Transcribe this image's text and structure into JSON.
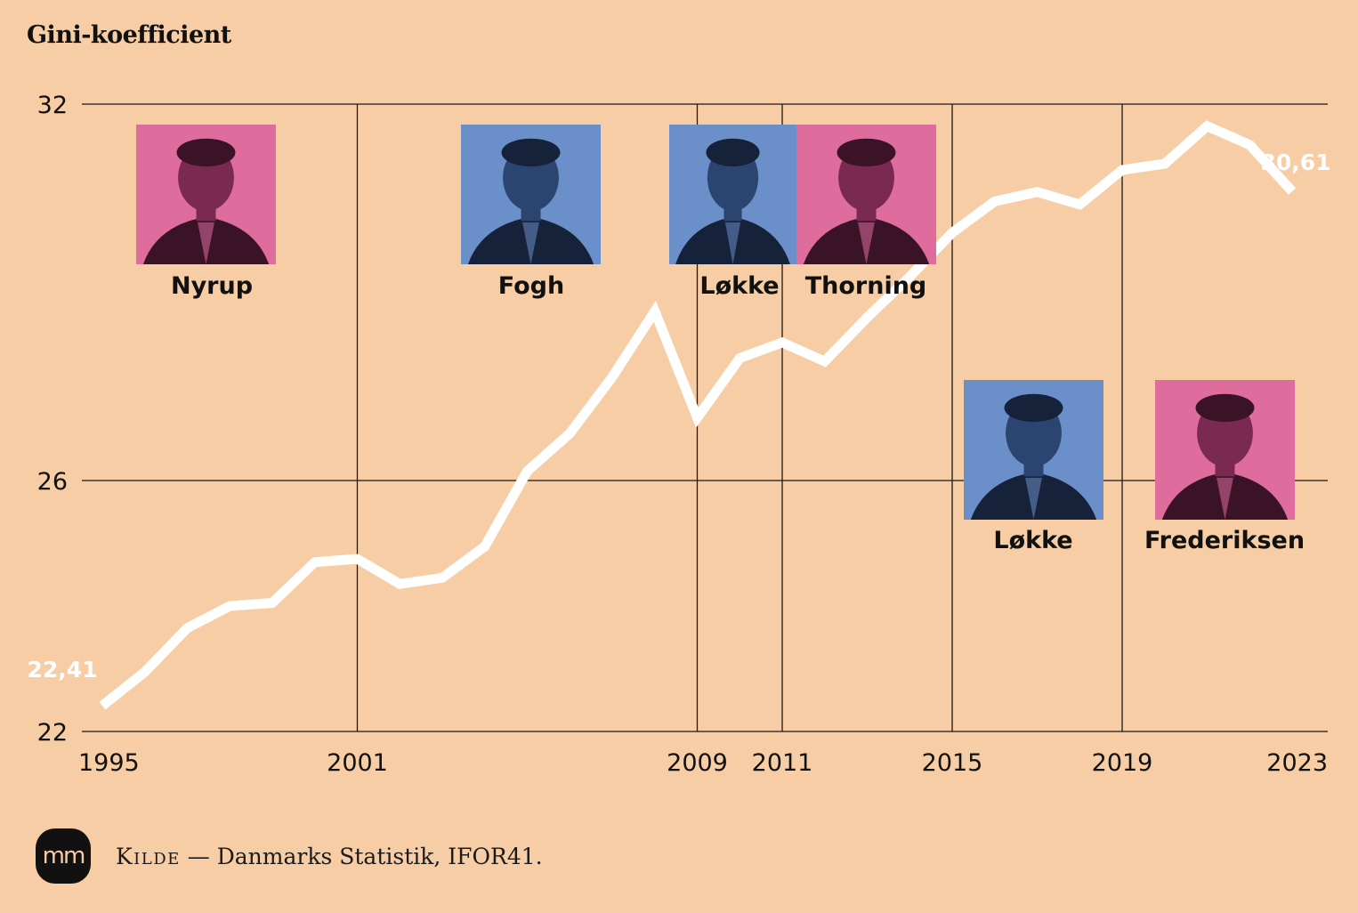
{
  "chart_data": {
    "type": "line",
    "ylabel": "Gini-koefficient",
    "ylim": [
      22,
      32
    ],
    "yticks": [
      "22",
      "26",
      "32"
    ],
    "xlim": [
      1995,
      2023
    ],
    "xticks": [
      "1995",
      "2001",
      "2009",
      "2011",
      "2015",
      "2019",
      "2023"
    ],
    "line_color": "#ffffff",
    "grid_color": "#1a1a1a",
    "series": [
      {
        "x": [
          1995,
          1996,
          1997,
          1998,
          1999,
          2000,
          2001,
          2002,
          2003,
          2004,
          2005,
          2006,
          2007,
          2008,
          2009,
          2010,
          2011,
          2012,
          2013,
          2014,
          2015,
          2016,
          2017,
          2018,
          2019,
          2020,
          2021,
          2022,
          2023
        ],
        "values": [
          22.41,
          22.95,
          23.65,
          24.0,
          24.05,
          24.7,
          24.75,
          24.35,
          24.45,
          24.95,
          26.15,
          26.75,
          27.65,
          28.7,
          27.0,
          27.95,
          28.2,
          27.9,
          28.6,
          29.25,
          29.95,
          30.45,
          30.6,
          30.4,
          30.95,
          31.05,
          31.65,
          31.35,
          30.61
        ]
      }
    ],
    "annotations": [
      {
        "x": 1995,
        "label": "22,41"
      },
      {
        "x": 2023,
        "label": "30,61"
      }
    ]
  },
  "portraits": [
    {
      "name": "Nyrup",
      "color": "#de6d9e"
    },
    {
      "name": "Fogh",
      "color": "#6b8fc8"
    },
    {
      "name": "Løkke",
      "color": "#6b8fc8"
    },
    {
      "name": "Thorning",
      "color": "#de6d9e"
    },
    {
      "name": "Løkke",
      "color": "#6b8fc8"
    },
    {
      "name": "Frederiksen",
      "color": "#de6d9e"
    }
  ],
  "footer": {
    "logo": "mm",
    "source_label": "Kilde",
    "source_text": " — Danmarks Statistik, IFOR41."
  }
}
